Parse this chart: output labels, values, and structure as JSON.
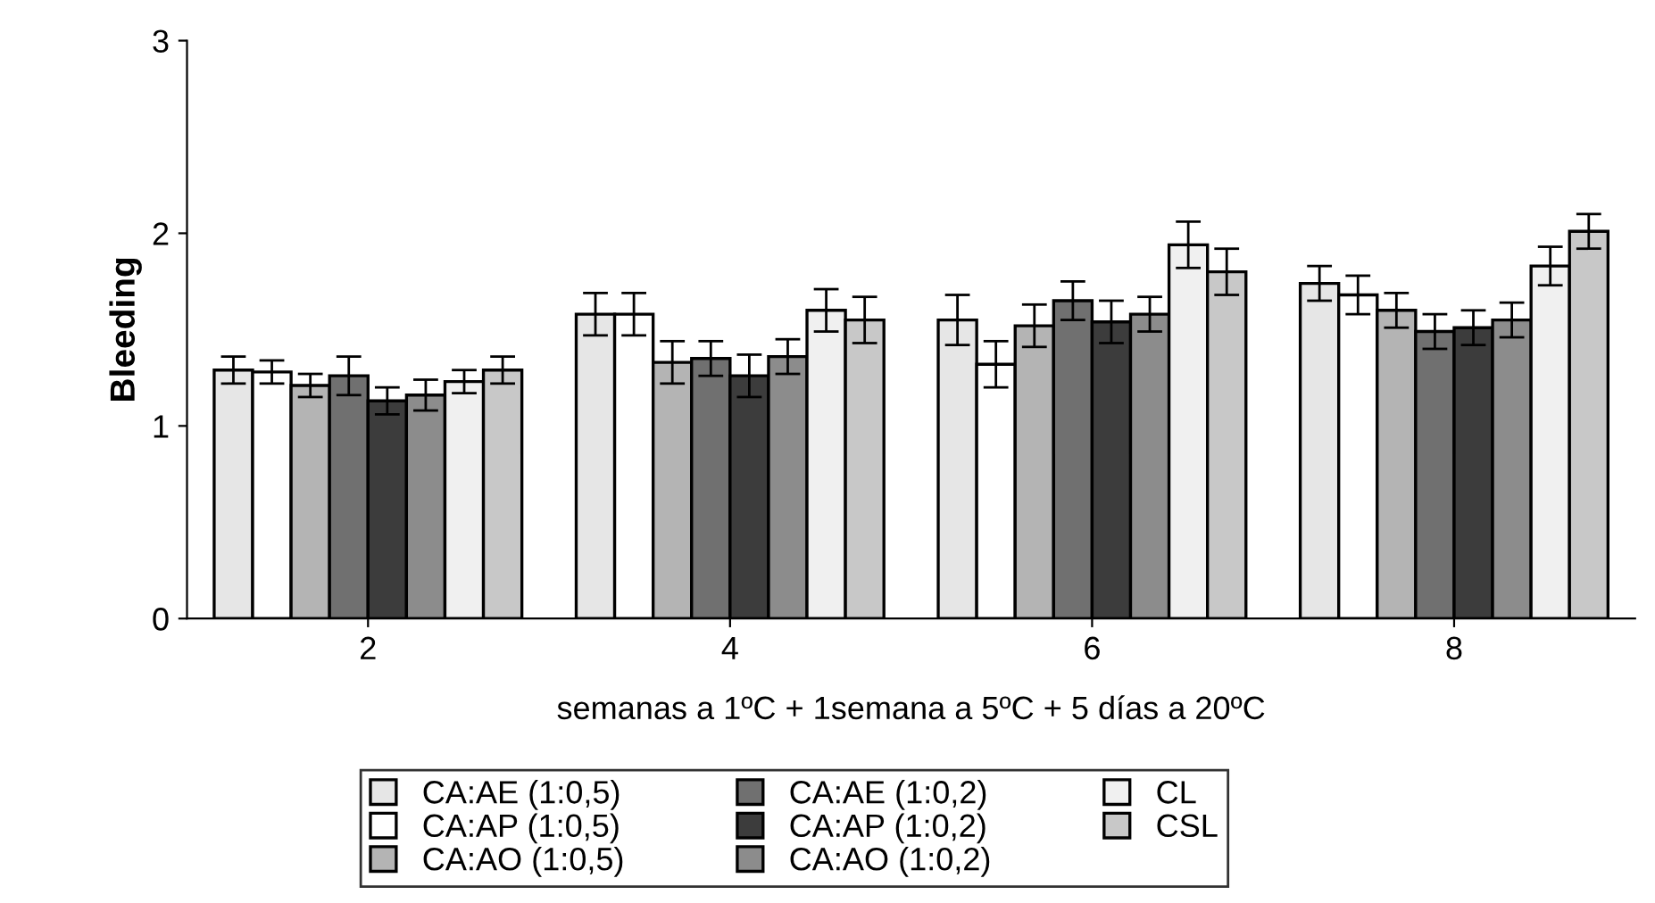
{
  "chart_data": {
    "type": "bar",
    "ylabel": "Bleeding",
    "xlabel": "semanas a 1ºC + 1semana a 5ºC + 5 días a 20ºC",
    "categories": [
      "2",
      "4",
      "6",
      "8"
    ],
    "ylim": [
      0,
      3
    ],
    "yticks": [
      0,
      1,
      2,
      3
    ],
    "grid": false,
    "legend": "bottom",
    "series": [
      {
        "name": "CA:AE (1:0,5)",
        "color": "#e6e6e6",
        "values": [
          1.29,
          1.58,
          1.55,
          1.74
        ],
        "errors": [
          0.07,
          0.11,
          0.13,
          0.09
        ]
      },
      {
        "name": "CA:AP (1:0,5)",
        "color": "#ffffff",
        "values": [
          1.28,
          1.58,
          1.32,
          1.68
        ],
        "errors": [
          0.06,
          0.11,
          0.12,
          0.1
        ]
      },
      {
        "name": "CA:AO (1:0,5)",
        "color": "#b4b4b4",
        "values": [
          1.21,
          1.33,
          1.52,
          1.6
        ],
        "errors": [
          0.06,
          0.11,
          0.11,
          0.09
        ]
      },
      {
        "name": "CA:AE (1:0,2)",
        "color": "#707070",
        "values": [
          1.26,
          1.35,
          1.65,
          1.49
        ],
        "errors": [
          0.1,
          0.09,
          0.1,
          0.09
        ]
      },
      {
        "name": "CA:AP (1:0,2)",
        "color": "#3c3c3c",
        "values": [
          1.13,
          1.26,
          1.54,
          1.51
        ],
        "errors": [
          0.07,
          0.11,
          0.11,
          0.09
        ]
      },
      {
        "name": "CA:AO (1:0,2)",
        "color": "#8c8c8c",
        "values": [
          1.16,
          1.36,
          1.58,
          1.55
        ],
        "errors": [
          0.08,
          0.09,
          0.09,
          0.09
        ]
      },
      {
        "name": "CL",
        "color": "#f0f0f0",
        "values": [
          1.23,
          1.6,
          1.94,
          1.83
        ],
        "errors": [
          0.06,
          0.11,
          0.12,
          0.1
        ]
      },
      {
        "name": "CSL",
        "color": "#c8c8c8",
        "values": [
          1.29,
          1.55,
          1.8,
          2.01
        ],
        "errors": [
          0.07,
          0.12,
          0.12,
          0.09
        ]
      }
    ]
  }
}
